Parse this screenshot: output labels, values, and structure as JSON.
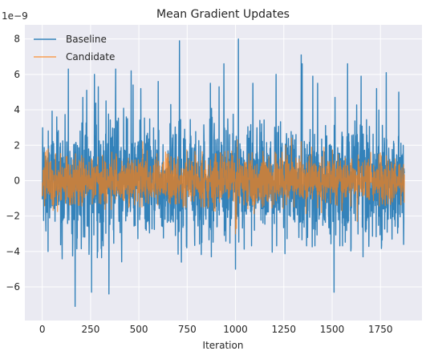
{
  "chart_data": {
    "type": "line",
    "title": "Mean Gradient Updates",
    "xlabel": "Iteration",
    "ylabel": "",
    "y_scale_label": "1e−9",
    "xlim": [
      -90,
      1965
    ],
    "ylim": [
      -7.9,
      8.8
    ],
    "x_ticks": [
      0,
      250,
      500,
      750,
      1000,
      1250,
      1500,
      1750
    ],
    "x_tick_labels": [
      "0",
      "250",
      "500",
      "750",
      "1000",
      "1250",
      "1500",
      "1750"
    ],
    "y_ticks": [
      -6,
      -4,
      -2,
      0,
      2,
      4,
      6,
      8
    ],
    "y_tick_labels": [
      "−6",
      "−4",
      "−2",
      "0",
      "2",
      "4",
      "6",
      "8"
    ],
    "grid": true,
    "legend_position": "top-left",
    "n_points": 1875,
    "series": [
      {
        "name": "Baseline",
        "color": "#1f77b4",
        "description_values": "noisy around 0, typical amplitude about ±2, spikes reaching about 8.0 and -7.1",
        "std": 1.6,
        "extremes": [
          [
            170,
            -7.1
          ],
          [
            210,
            4.7
          ],
          [
            230,
            5.1
          ],
          [
            255,
            -6.3
          ],
          [
            270,
            6.0
          ],
          [
            290,
            5.3
          ],
          [
            330,
            4.5
          ],
          [
            345,
            -6.4
          ],
          [
            380,
            6.3
          ],
          [
            460,
            6.2
          ],
          [
            470,
            5.4
          ],
          [
            510,
            5.2
          ],
          [
            600,
            5.6
          ],
          [
            665,
            4.3
          ],
          [
            710,
            7.9
          ],
          [
            720,
            -4.6
          ],
          [
            870,
            5.5
          ],
          [
            875,
            -4.3
          ],
          [
            915,
            5.3
          ],
          [
            940,
            6.6
          ],
          [
            1000,
            -5.0
          ],
          [
            1015,
            8.0
          ],
          [
            1090,
            5.5
          ],
          [
            1210,
            6.0
          ],
          [
            1340,
            7.1
          ],
          [
            1345,
            6.6
          ],
          [
            1400,
            5.9
          ],
          [
            1425,
            5.5
          ],
          [
            1510,
            -6.3
          ],
          [
            1515,
            4.7
          ],
          [
            1580,
            6.6
          ],
          [
            1650,
            5.9
          ],
          [
            1730,
            5.2
          ],
          [
            1780,
            6.1
          ],
          [
            1845,
            5.0
          ],
          [
            1870,
            -3.6
          ],
          [
            135,
            6.3
          ],
          [
            75,
            3.6
          ],
          [
            30,
            -4.0
          ],
          [
            1660,
            -4.3
          ]
        ]
      },
      {
        "name": "Candidate",
        "color": "#ff7f0e",
        "description_values": "noisy around 0, typical amplitude about ±1, peaks up to about 2.5 and down to about -3.0",
        "std": 0.7,
        "extremes": [
          [
            15,
            1.6
          ],
          [
            30,
            1.8
          ],
          [
            520,
            2.2
          ],
          [
            1000,
            -3.0
          ],
          [
            1005,
            -2.7
          ],
          [
            1010,
            2.3
          ],
          [
            1260,
            2.0
          ],
          [
            1290,
            2.4
          ],
          [
            1340,
            2.2
          ],
          [
            1630,
            -2.3
          ],
          [
            1700,
            1.6
          ]
        ]
      }
    ]
  }
}
